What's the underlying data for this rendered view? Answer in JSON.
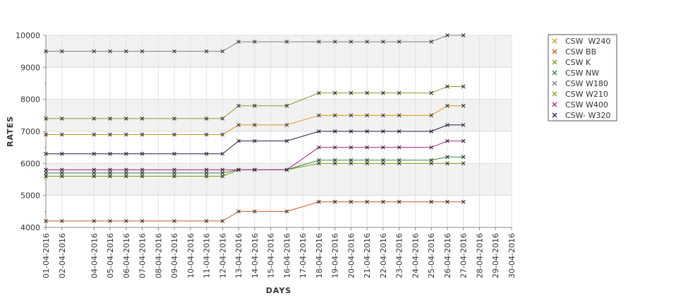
{
  "chart_data": {
    "type": "line",
    "xlabel": "DAYS",
    "ylabel": "RATES",
    "ylim": [
      4000,
      10000
    ],
    "yticks": [
      4000,
      5000,
      6000,
      7000,
      8000,
      9000,
      10000
    ],
    "xticks": [
      "01-04-2016",
      "02-04-2016",
      "04-04-2016",
      "05-04-2016",
      "06-04-2016",
      "07-04-2016",
      "08-04-2016",
      "09-04-2016",
      "10-04-2016",
      "11-04-2016",
      "12-04-2016",
      "13-04-2016",
      "14-04-2016",
      "15-04-2016",
      "16-04-2016",
      "17-04-2016",
      "18-04-2016",
      "19-04-2016",
      "20-04-2016",
      "21-04-2016",
      "22-04-2016",
      "23-04-2016",
      "24-04-2016",
      "25-04-2016",
      "26-04-2016",
      "27-04-2016",
      "28-04-2016",
      "29-04-2016",
      "30-04-2016"
    ],
    "x": [
      "01-04-2016",
      "02-04-2016",
      "04-04-2016",
      "05-04-2016",
      "06-04-2016",
      "07-04-2016",
      "09-04-2016",
      "11-04-2016",
      "12-04-2016",
      "13-04-2016",
      "14-04-2016",
      "16-04-2016",
      "18-04-2016",
      "19-04-2016",
      "20-04-2016",
      "21-04-2016",
      "22-04-2016",
      "23-04-2016",
      "25-04-2016",
      "26-04-2016",
      "27-04-2016"
    ],
    "grid": true,
    "legend_position": "top-right",
    "series": [
      {
        "name": "CSW  W240",
        "color": "#e0901c",
        "values": [
          6900,
          6900,
          6900,
          6900,
          6900,
          6900,
          6900,
          6900,
          6900,
          7200,
          7200,
          7200,
          7500,
          7500,
          7500,
          7500,
          7500,
          7500,
          7500,
          7800,
          7800
        ]
      },
      {
        "name": "CSW BB",
        "color": "#d2561e",
        "values": [
          4200,
          4200,
          4200,
          4200,
          4200,
          4200,
          4200,
          4200,
          4200,
          4500,
          4500,
          4500,
          4800,
          4800,
          4800,
          4800,
          4800,
          4800,
          4800,
          4800,
          4800
        ]
      },
      {
        "name": "CSW K",
        "color": "#7a9a12",
        "values": [
          5600,
          5600,
          5600,
          5600,
          5600,
          5600,
          5600,
          5600,
          5600,
          5800,
          5800,
          5800,
          6000,
          6000,
          6000,
          6000,
          6000,
          6000,
          6000,
          6000,
          6000
        ]
      },
      {
        "name": "CSW NW",
        "color": "#2e8b3c",
        "values": [
          5700,
          5700,
          5700,
          5700,
          5700,
          5700,
          5700,
          5700,
          5700,
          5800,
          5800,
          5800,
          6100,
          6100,
          6100,
          6100,
          6100,
          6100,
          6100,
          6200,
          6200
        ]
      },
      {
        "name": "CSW W180",
        "color": "#7f7f7f",
        "values": [
          9500,
          9500,
          9500,
          9500,
          9500,
          9500,
          9500,
          9500,
          9500,
          9800,
          9800,
          9800,
          9800,
          9800,
          9800,
          9800,
          9800,
          9800,
          9800,
          10000,
          10000
        ]
      },
      {
        "name": "CSW W210",
        "color": "#8a9a2a",
        "values": [
          7400,
          7400,
          7400,
          7400,
          7400,
          7400,
          7400,
          7400,
          7400,
          7800,
          7800,
          7800,
          8200,
          8200,
          8200,
          8200,
          8200,
          8200,
          8200,
          8400,
          8400
        ]
      },
      {
        "name": "CSW W400",
        "color": "#b0208e",
        "values": [
          5800,
          5800,
          5800,
          5800,
          5800,
          5800,
          5800,
          5800,
          5800,
          5800,
          5800,
          5800,
          6500,
          6500,
          6500,
          6500,
          6500,
          6500,
          6500,
          6700,
          6700
        ]
      },
      {
        "name": "CSW- W320",
        "color": "#1a1f4a",
        "values": [
          6300,
          6300,
          6300,
          6300,
          6300,
          6300,
          6300,
          6300,
          6300,
          6700,
          6700,
          6700,
          7000,
          7000,
          7000,
          7000,
          7000,
          7000,
          7000,
          7200,
          7200
        ]
      }
    ]
  }
}
